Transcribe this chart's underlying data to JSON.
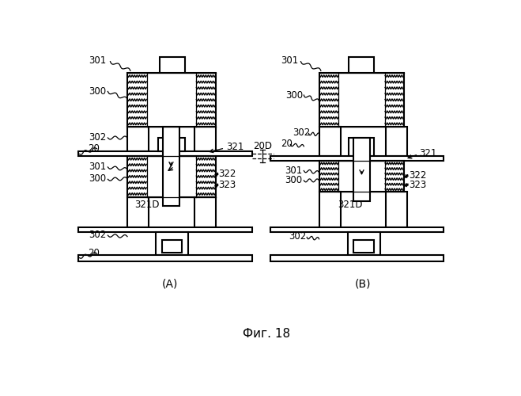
{
  "title": "Фиг. 18",
  "label_A": "(A)",
  "label_B": "(B)",
  "bg_color": "#ffffff"
}
